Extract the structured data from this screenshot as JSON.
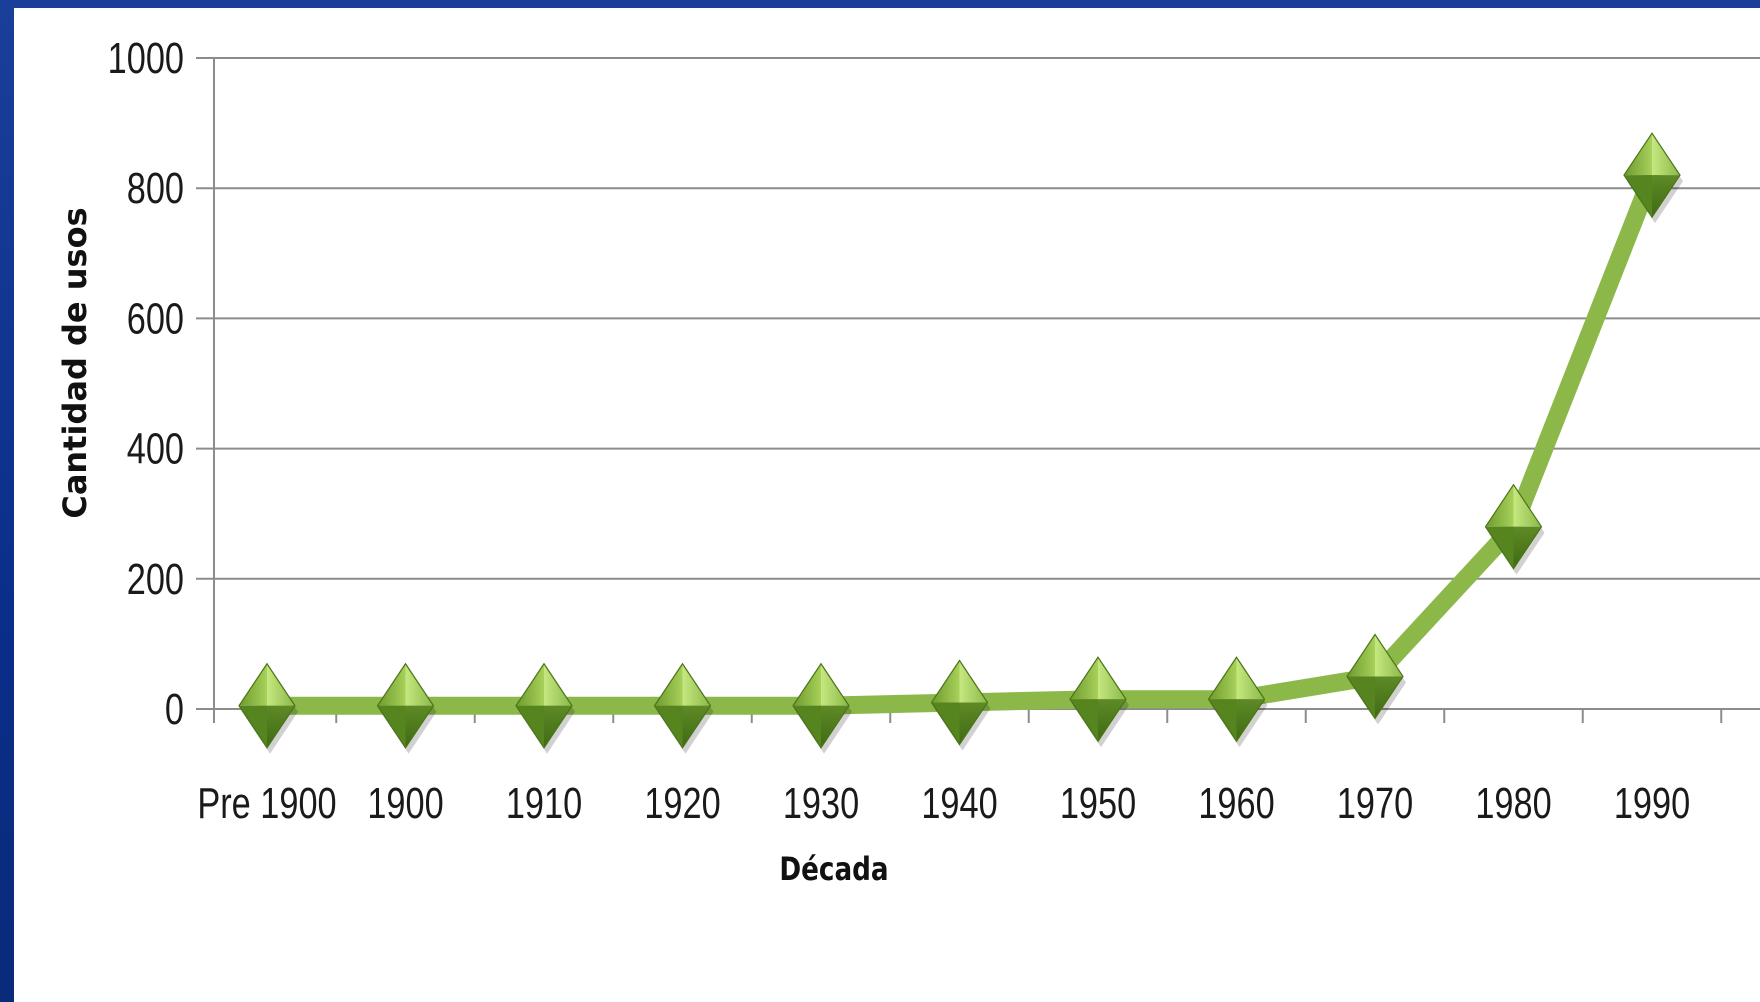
{
  "chart_data": {
    "type": "line",
    "title": "",
    "xlabel": "Década",
    "ylabel": "Cantidad de usos",
    "categories": [
      "Pre 1900",
      "1900",
      "1910",
      "1920",
      "1930",
      "1940",
      "1950",
      "1960",
      "1970",
      "1980",
      "1990"
    ],
    "series": [
      {
        "values": [
          5,
          5,
          5,
          5,
          5,
          10,
          15,
          15,
          50,
          280,
          820
        ]
      }
    ],
    "ylim": [
      0,
      1000
    ],
    "yticks": [
      0,
      200,
      400,
      600,
      800,
      1000
    ],
    "grid": true,
    "legend": "none",
    "colors": {
      "line": "#8cb84a",
      "marker_light": "#b9dc6a",
      "marker_dark": "#4e7a1e",
      "gridline": "#8c8c8c"
    }
  }
}
